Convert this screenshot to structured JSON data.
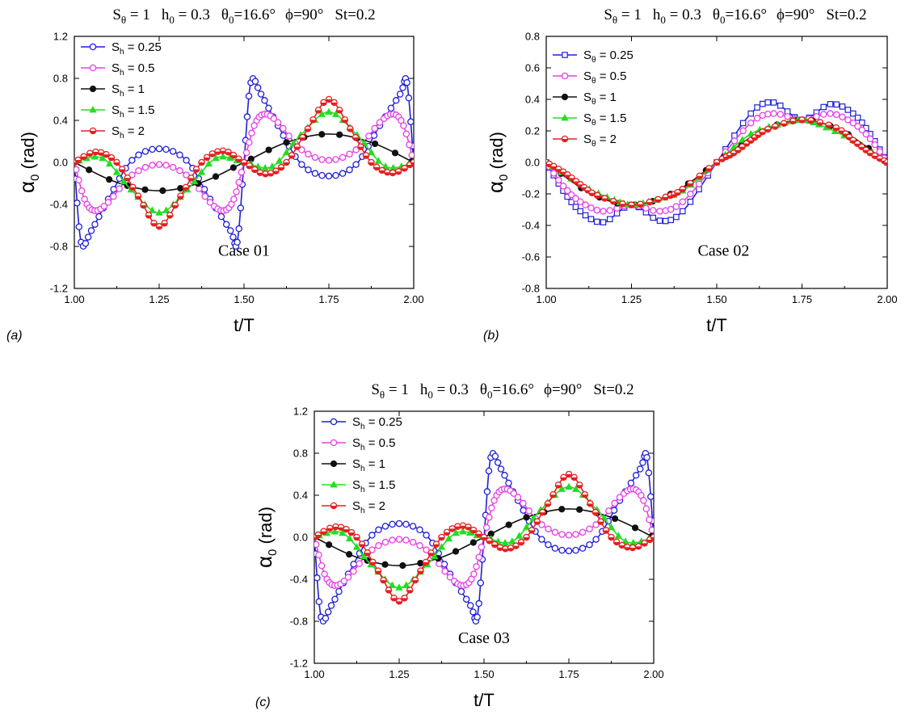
{
  "chart_data": [
    {
      "type": "line",
      "panel_label": "(a)",
      "title": {
        "s_sym": "S",
        "s_sub": "θ",
        "s_eq": " = 1",
        "h_sym": "h",
        "h_sub": "0",
        "h_eq": " = 0.3",
        "t_sym": "θ",
        "t_sub": "0",
        "t_eq": "=16.6°",
        "phi": "ϕ=90°",
        "st": "St=0.2"
      },
      "case_label": "Case 01",
      "xlabel": "t/T",
      "ylabel_sym": "α",
      "ylabel_sub": "0",
      "ylabel_unit": " (rad)",
      "xlim": [
        1.0,
        2.0
      ],
      "ylim": [
        -1.2,
        1.2
      ],
      "xticks": [
        "1.00",
        "1.25",
        "1.50",
        "1.75",
        "2.00"
      ],
      "yticks": [
        "-1.2",
        "-0.8",
        "-0.4",
        "0.0",
        "0.4",
        "0.8",
        "1.2"
      ],
      "series": [
        {
          "name_sym": "S",
          "name_sub": "h",
          "name_eq": " = 0.25",
          "color": "#1f1fd8",
          "marker": "open-circle",
          "x": [
            1.0,
            1.02,
            1.05,
            1.1,
            1.17,
            1.25,
            1.33,
            1.4,
            1.46,
            1.48,
            1.5,
            1.52,
            1.55,
            1.6,
            1.67,
            1.75,
            1.83,
            1.9,
            1.96,
            1.98,
            2.0
          ],
          "y": [
            0.0,
            -0.76,
            -0.65,
            -0.35,
            0.02,
            0.13,
            0.02,
            -0.35,
            -0.65,
            -0.76,
            0.0,
            0.76,
            0.65,
            0.35,
            -0.02,
            -0.13,
            -0.02,
            0.35,
            0.65,
            0.76,
            0.0
          ]
        },
        {
          "name_sym": "S",
          "name_sub": "h",
          "name_eq": " = 0.5",
          "color": "#e83ee8",
          "marker": "open-circle",
          "x": [
            1.0,
            1.03,
            1.06,
            1.1,
            1.17,
            1.25,
            1.33,
            1.4,
            1.44,
            1.47,
            1.5,
            1.53,
            1.56,
            1.6,
            1.67,
            1.75,
            1.83,
            1.9,
            1.94,
            1.97,
            2.0
          ],
          "y": [
            0.0,
            -0.35,
            -0.46,
            -0.38,
            -0.12,
            -0.02,
            -0.12,
            -0.38,
            -0.46,
            -0.35,
            0.0,
            0.35,
            0.46,
            0.38,
            0.12,
            0.02,
            0.12,
            0.38,
            0.46,
            0.35,
            0.0
          ]
        },
        {
          "name_sym": "S",
          "name_sub": "h",
          "name_eq": " = 1",
          "color": "#111111",
          "marker": "filled-circle",
          "x": [
            1.0,
            1.125,
            1.25,
            1.375,
            1.5,
            1.625,
            1.75,
            1.875,
            2.0
          ],
          "y": [
            0.0,
            -0.19,
            -0.27,
            -0.19,
            0.0,
            0.19,
            0.27,
            0.19,
            0.0
          ]
        },
        {
          "name_sym": "S",
          "name_sub": "h",
          "name_eq": " = 1.5",
          "color": "#22dd22",
          "marker": "filled-triangle",
          "x": [
            1.0,
            1.083,
            1.167,
            1.25,
            1.333,
            1.417,
            1.5,
            1.583,
            1.667,
            1.75,
            1.833,
            1.917,
            2.0
          ],
          "y": [
            0.0,
            0.04,
            -0.26,
            -0.48,
            -0.26,
            0.04,
            0.0,
            -0.04,
            0.26,
            0.48,
            0.26,
            -0.04,
            0.0
          ]
        },
        {
          "name_sym": "S",
          "name_sub": "h",
          "name_eq": " = 2",
          "color": "#e42020",
          "marker": "half-circle",
          "x": [
            1.0,
            1.063,
            1.125,
            1.188,
            1.25,
            1.313,
            1.375,
            1.438,
            1.5,
            1.563,
            1.625,
            1.688,
            1.75,
            1.813,
            1.875,
            1.938,
            2.0
          ],
          "y": [
            0.0,
            0.1,
            0.0,
            -0.32,
            -0.61,
            -0.32,
            0.0,
            0.11,
            0.0,
            -0.11,
            0.0,
            0.32,
            0.6,
            0.32,
            0.0,
            -0.1,
            0.0
          ]
        }
      ]
    },
    {
      "type": "line",
      "panel_label": "(b)",
      "title": {
        "s_sym": "S",
        "s_sub": "θ",
        "s_eq": " = 1",
        "h_sym": "h",
        "h_sub": "0",
        "h_eq": " = 0.3",
        "t_sym": "θ",
        "t_sub": "0",
        "t_eq": "=16.6°",
        "phi": "ϕ=90°",
        "st": "St=0.2"
      },
      "case_label": "Case 02",
      "xlabel": "t/T",
      "ylabel_sym": "α",
      "ylabel_sub": "0",
      "ylabel_unit": " (rad)",
      "xlim": [
        1.0,
        2.0
      ],
      "ylim": [
        -0.8,
        0.8
      ],
      "xticks": [
        "1.00",
        "1.25",
        "1.50",
        "1.75",
        "2.00"
      ],
      "yticks": [
        "-0.8",
        "-0.6",
        "-0.4",
        "-0.2",
        "0.0",
        "0.2",
        "0.4",
        "0.6",
        "0.8"
      ],
      "series": [
        {
          "name_sym": "S",
          "name_sub": "θ",
          "name_eq": " = 0.25",
          "color": "#1f1fd8",
          "marker": "open-square",
          "x": [
            1.0,
            1.05,
            1.1,
            1.167,
            1.25,
            1.333,
            1.4,
            1.5,
            1.6,
            1.667,
            1.75,
            1.833,
            1.9,
            1.95,
            2.0
          ],
          "y": [
            0.0,
            -0.18,
            -0.31,
            -0.38,
            -0.27,
            -0.37,
            -0.31,
            0.0,
            0.31,
            0.38,
            0.27,
            0.37,
            0.31,
            0.18,
            0.0
          ]
        },
        {
          "name_sym": "S",
          "name_sub": "θ",
          "name_eq": " = 0.5",
          "color": "#e83ee8",
          "marker": "open-circle",
          "x": [
            1.0,
            1.05,
            1.1,
            1.167,
            1.25,
            1.333,
            1.4,
            1.5,
            1.6,
            1.667,
            1.75,
            1.833,
            1.9,
            1.95,
            2.0
          ],
          "y": [
            0.0,
            -0.15,
            -0.25,
            -0.31,
            -0.27,
            -0.31,
            -0.25,
            0.0,
            0.25,
            0.31,
            0.27,
            0.31,
            0.25,
            0.15,
            0.0
          ]
        },
        {
          "name_sym": "S",
          "name_sub": "θ",
          "name_eq": " = 1",
          "color": "#111111",
          "marker": "filled-circle",
          "x": [
            1.0,
            1.125,
            1.25,
            1.375,
            1.5,
            1.625,
            1.75,
            1.875,
            2.0
          ],
          "y": [
            0.0,
            -0.19,
            -0.27,
            -0.19,
            0.0,
            0.19,
            0.27,
            0.19,
            0.0
          ]
        },
        {
          "name_sym": "S",
          "name_sub": "θ",
          "name_eq": " = 1.5",
          "color": "#22dd22",
          "marker": "filled-triangle",
          "x": [
            1.0,
            1.1,
            1.2,
            1.25,
            1.3,
            1.4,
            1.5,
            1.6,
            1.7,
            1.75,
            1.8,
            1.9,
            2.0
          ],
          "y": [
            0.0,
            -0.14,
            -0.24,
            -0.27,
            -0.25,
            -0.18,
            0.0,
            0.18,
            0.25,
            0.27,
            0.24,
            0.14,
            0.0
          ]
        },
        {
          "name_sym": "S",
          "name_sub": "θ",
          "name_eq": " = 2",
          "color": "#e42020",
          "marker": "half-circle",
          "x": [
            1.0,
            1.05,
            1.1,
            1.15,
            1.25,
            1.35,
            1.4,
            1.5,
            1.55,
            1.6,
            1.65,
            1.75,
            1.85,
            1.9,
            1.95,
            2.0
          ],
          "y": [
            0.0,
            -0.06,
            -0.14,
            -0.21,
            -0.27,
            -0.22,
            -0.17,
            0.0,
            0.06,
            0.14,
            0.21,
            0.27,
            0.22,
            0.14,
            0.06,
            0.0
          ]
        }
      ]
    },
    {
      "type": "line",
      "panel_label": "(c)",
      "title": {
        "s_sym": "S",
        "s_sub": "θ",
        "s_eq": " = 1",
        "h_sym": "h",
        "h_sub": "0",
        "h_eq": " = 0.3",
        "t_sym": "θ",
        "t_sub": "0",
        "t_eq": "=16.6°",
        "phi": "ϕ=90°",
        "st": "St=0.2"
      },
      "case_label": "Case 03",
      "xlabel": "t/T",
      "ylabel_sym": "α",
      "ylabel_sub": "0",
      "ylabel_unit": " (rad)",
      "xlim": [
        1.0,
        2.0
      ],
      "ylim": [
        -1.2,
        1.2
      ],
      "xticks": [
        "1.00",
        "1.25",
        "1.50",
        "1.75",
        "2.00"
      ],
      "yticks": [
        "-1.2",
        "-0.8",
        "-0.4",
        "0.0",
        "0.4",
        "0.8",
        "1.2"
      ],
      "series": [
        {
          "name_sym": "S",
          "name_sub": "h",
          "name_eq": " = 0.25",
          "color": "#1f1fd8",
          "marker": "open-circle",
          "x": [
            1.0,
            1.02,
            1.05,
            1.1,
            1.17,
            1.25,
            1.33,
            1.4,
            1.46,
            1.48,
            1.5,
            1.52,
            1.55,
            1.6,
            1.67,
            1.75,
            1.83,
            1.9,
            1.96,
            1.98,
            2.0
          ],
          "y": [
            0.0,
            -0.76,
            -0.65,
            -0.35,
            0.02,
            0.13,
            0.02,
            -0.35,
            -0.65,
            -0.76,
            0.0,
            0.76,
            0.65,
            0.35,
            -0.02,
            -0.13,
            -0.02,
            0.35,
            0.65,
            0.76,
            0.0
          ]
        },
        {
          "name_sym": "S",
          "name_sub": "h",
          "name_eq": " = 0.5",
          "color": "#e83ee8",
          "marker": "open-circle",
          "x": [
            1.0,
            1.03,
            1.06,
            1.1,
            1.17,
            1.25,
            1.33,
            1.4,
            1.44,
            1.47,
            1.5,
            1.53,
            1.56,
            1.6,
            1.67,
            1.75,
            1.83,
            1.9,
            1.94,
            1.97,
            2.0
          ],
          "y": [
            0.0,
            -0.35,
            -0.46,
            -0.38,
            -0.12,
            -0.02,
            -0.12,
            -0.38,
            -0.46,
            -0.35,
            0.0,
            0.35,
            0.46,
            0.38,
            0.12,
            0.02,
            0.12,
            0.38,
            0.46,
            0.35,
            0.0
          ]
        },
        {
          "name_sym": "S",
          "name_sub": "h",
          "name_eq": " = 1",
          "color": "#111111",
          "marker": "filled-circle",
          "x": [
            1.0,
            1.125,
            1.25,
            1.375,
            1.5,
            1.625,
            1.75,
            1.875,
            2.0
          ],
          "y": [
            0.0,
            -0.19,
            -0.27,
            -0.19,
            0.0,
            0.19,
            0.27,
            0.19,
            0.0
          ]
        },
        {
          "name_sym": "S",
          "name_sub": "h",
          "name_eq": " = 1.5",
          "color": "#22dd22",
          "marker": "filled-triangle",
          "x": [
            1.0,
            1.083,
            1.167,
            1.25,
            1.333,
            1.417,
            1.5,
            1.583,
            1.667,
            1.75,
            1.833,
            1.917,
            2.0
          ],
          "y": [
            0.0,
            0.04,
            -0.26,
            -0.48,
            -0.26,
            0.04,
            0.0,
            -0.04,
            0.26,
            0.48,
            0.26,
            -0.04,
            0.0
          ]
        },
        {
          "name_sym": "S",
          "name_sub": "h",
          "name_eq": " = 2",
          "color": "#e42020",
          "marker": "half-circle",
          "x": [
            1.0,
            1.063,
            1.125,
            1.188,
            1.25,
            1.313,
            1.375,
            1.438,
            1.5,
            1.563,
            1.625,
            1.688,
            1.75,
            1.813,
            1.875,
            1.938,
            2.0
          ],
          "y": [
            0.0,
            0.1,
            0.0,
            -0.32,
            -0.61,
            -0.32,
            0.0,
            0.11,
            0.0,
            -0.11,
            0.0,
            0.32,
            0.6,
            0.32,
            0.0,
            -0.1,
            0.0
          ]
        }
      ]
    }
  ]
}
